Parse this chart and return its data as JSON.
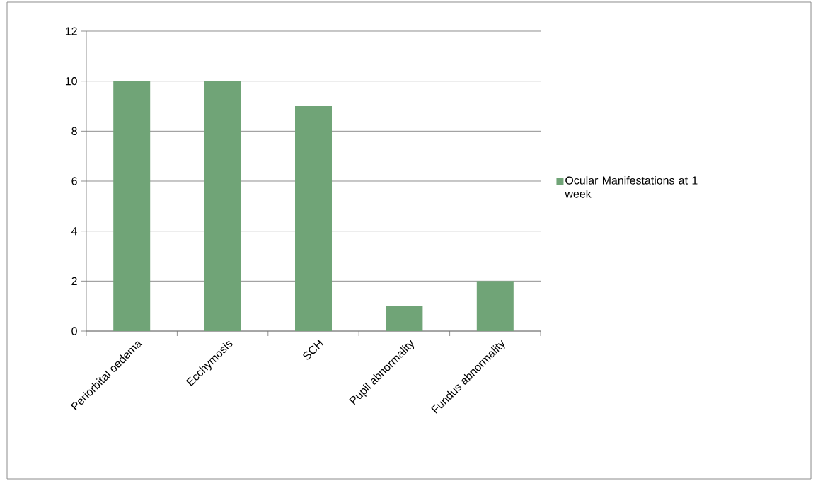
{
  "chart_data": {
    "type": "bar",
    "categories": [
      "Periorbital oedema",
      "Ecchymosis",
      "SCH",
      "Pupil abnormality",
      "Fundus abnormality"
    ],
    "series": [
      {
        "name": "Ocular Manifestations at 1 week",
        "color": "#70a477",
        "values": [
          10,
          10,
          9,
          1,
          2
        ]
      }
    ],
    "ylim": [
      0,
      12
    ],
    "yticks": [
      0,
      2,
      4,
      6,
      8,
      10,
      12
    ],
    "grid": "y",
    "legend": "right"
  }
}
